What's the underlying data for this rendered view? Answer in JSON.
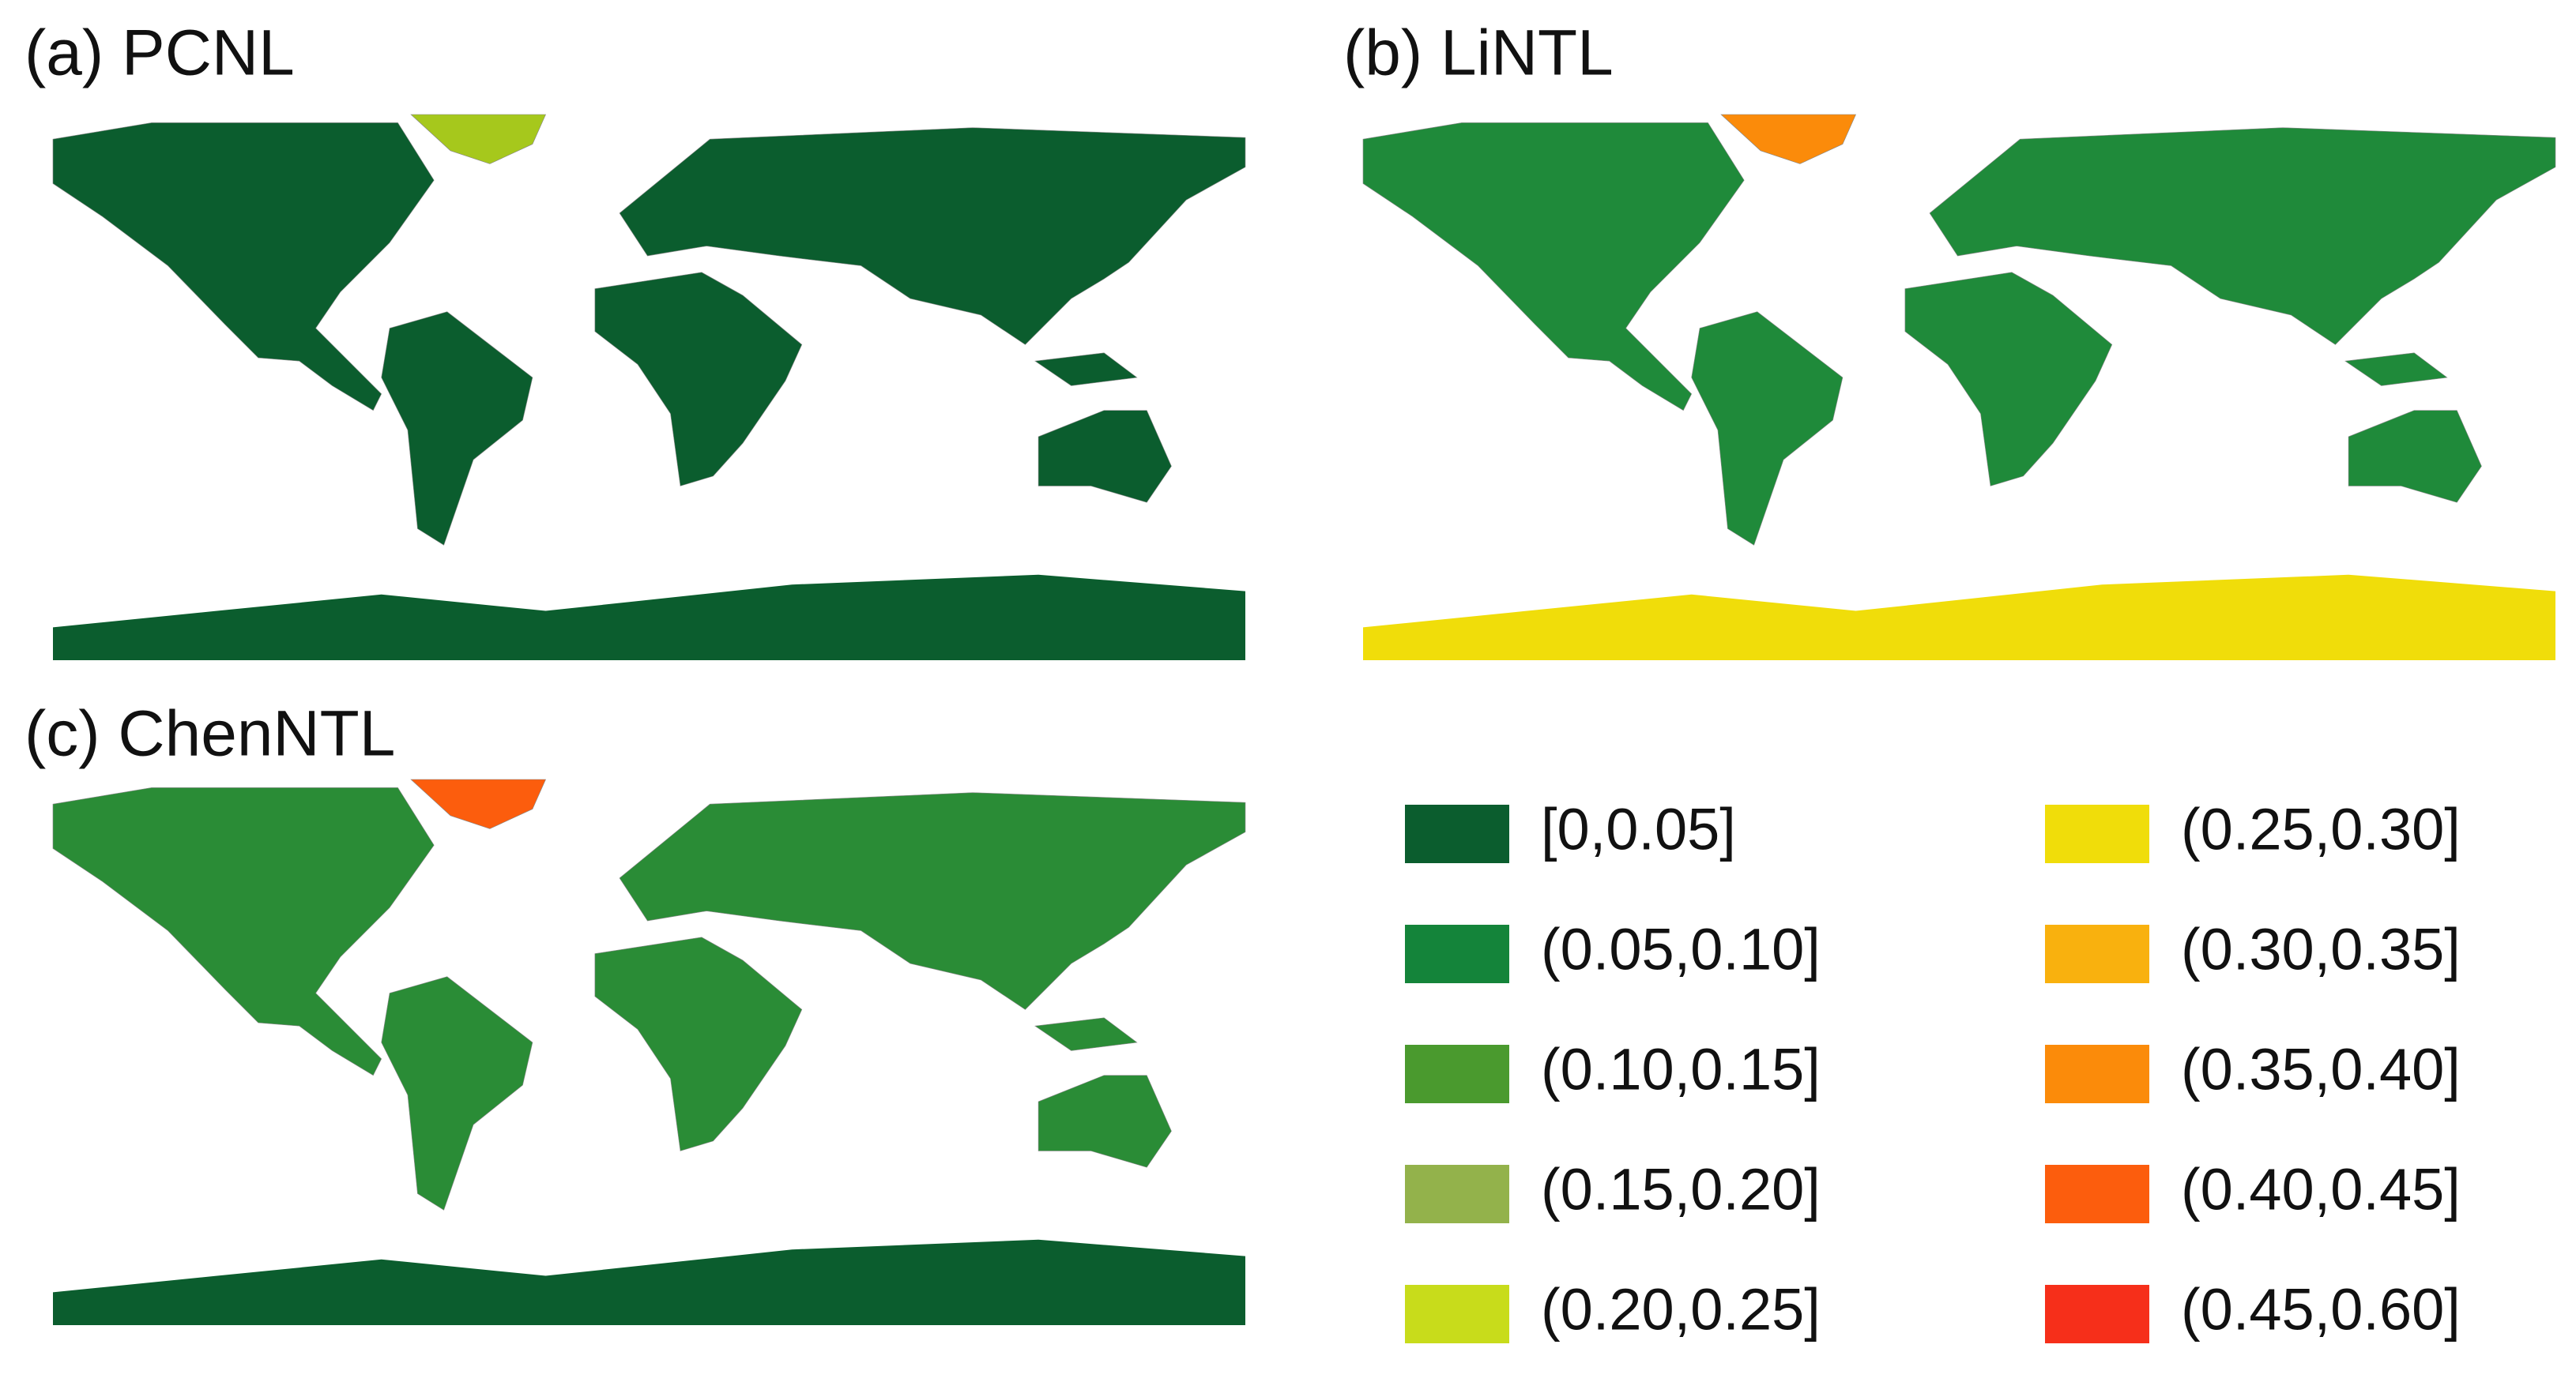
{
  "panels": [
    {
      "title": "(a) PCNL",
      "land": "#0b5d2e",
      "greenland": "#a6c81c",
      "antarctica": "#0b5d2e"
    },
    {
      "title": "(b) LiNTL",
      "land": "#1f8a3a",
      "greenland": "#fb8b0a",
      "antarctica": "#f0dd0a"
    },
    {
      "title": "(c) ChenNTL",
      "land": "#2a8c36",
      "greenland": "#fc5d0d",
      "antarctica": "#0b5d2e"
    }
  ],
  "legend": [
    {
      "label": "[0,0.05]",
      "color": "#0b5d2e"
    },
    {
      "label": "(0.05,0.10]",
      "color": "#14843a"
    },
    {
      "label": "(0.10,0.15]",
      "color": "#4a9a2e"
    },
    {
      "label": "(0.15,0.20]",
      "color": "#93b24b"
    },
    {
      "label": "(0.20,0.25]",
      "color": "#c8dc1b"
    },
    {
      "label": "(0.25,0.30]",
      "color": "#f0dd0a"
    },
    {
      "label": "(0.30,0.35]",
      "color": "#f9b10e"
    },
    {
      "label": "(0.35,0.40]",
      "color": "#fb8b0a"
    },
    {
      "label": "(0.40,0.45]",
      "color": "#fc5d0d"
    },
    {
      "label": "(0.45,0.60]",
      "color": "#f62f1a"
    }
  ]
}
